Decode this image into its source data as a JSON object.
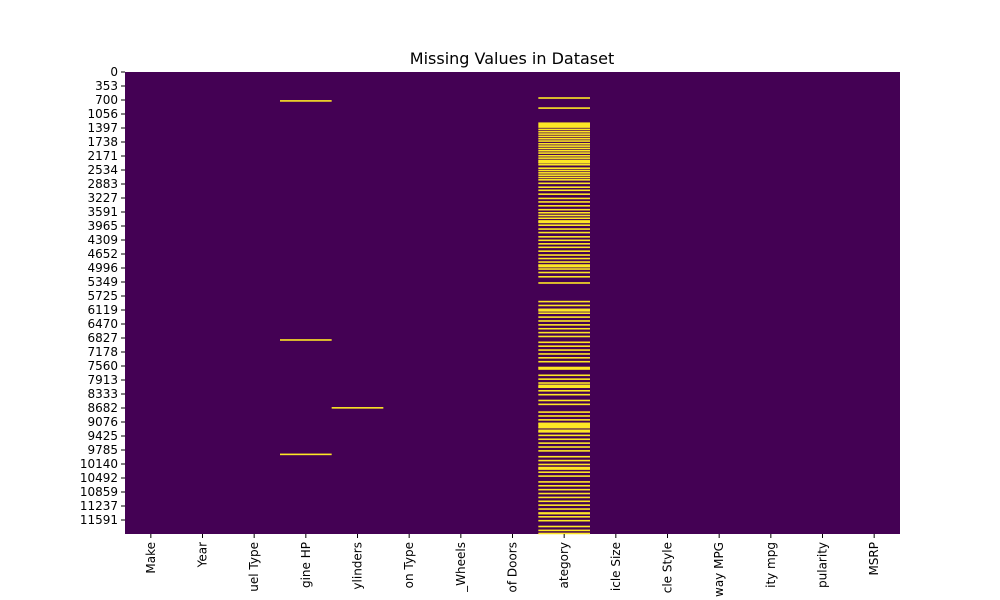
{
  "chart_data": {
    "type": "heatmap",
    "title": "Missing Values in Dataset",
    "xlabel": "",
    "ylabel": "",
    "columns": [
      "Make",
      "Year",
      "Fuel Type",
      "Engine HP",
      "Cylinders",
      "Transmission Type",
      "Driven_Wheels",
      "Number of Doors",
      "Market Category",
      "Vehicle Size",
      "Vehicle Style",
      "highway MPG",
      "city mpg",
      "Popularity",
      "MSRP"
    ],
    "column_tick_labels": [
      "Make",
      "Year",
      "uel Type",
      "gine HP",
      "ylinders",
      "on Type",
      "_Wheels",
      "of Doors",
      "ategory",
      "icle Size",
      "cle Style",
      "way MPG",
      "ity mpg",
      "pularity",
      "MSRP"
    ],
    "row_tick_labels": [
      "0",
      "353",
      "700",
      "1056",
      "1397",
      "1738",
      "2171",
      "2534",
      "2883",
      "3227",
      "3591",
      "3965",
      "4309",
      "4652",
      "4996",
      "5349",
      "5725",
      "6119",
      "6470",
      "6827",
      "7178",
      "7560",
      "7913",
      "8333",
      "8682",
      "9076",
      "9425",
      "9785",
      "10140",
      "10492",
      "10859",
      "11237",
      "11591"
    ],
    "total_rows": 11914,
    "colors": {
      "present": "#440154",
      "missing": "#fde725"
    },
    "missing_rows": {
      "Engine HP": [
        725,
        6890,
        9840
      ],
      "Cylinders": [
        8640
      ],
      "Number of Doors": [],
      "Market Category": [
        650,
        910,
        1460,
        1520,
        1580,
        1640,
        1700,
        1760,
        1830,
        1890,
        1950,
        2010,
        2070,
        2140,
        2200,
        2260,
        2320,
        2370,
        2460,
        2520,
        2580,
        2640,
        2700,
        2760,
        2850,
        2950,
        3030,
        3130,
        3240,
        3330,
        3430,
        3530,
        3610,
        3680,
        3750,
        3840,
        3930,
        4030,
        4120,
        4230,
        4320,
        4410,
        4500,
        4600,
        4700,
        4790,
        4880,
        4960,
        5060,
        5150,
        5260,
        5420,
        5900,
        6000,
        6100,
        6200,
        6300,
        6400,
        6500,
        6600,
        6700,
        6800,
        6950,
        7050,
        7150,
        7250,
        7350,
        7450,
        7600,
        7800,
        7900,
        8000,
        8100,
        8200,
        8300,
        8450,
        8550,
        8750,
        8850,
        8950,
        9050,
        9150,
        9250,
        9350,
        9450,
        9550,
        9650,
        9750,
        9900,
        10000,
        10100,
        10200,
        10300,
        10400,
        10550,
        10650,
        10750,
        10850,
        10950,
        11050,
        11150,
        11250,
        11350,
        11450,
        11550,
        11700,
        11800,
        11880
      ]
    },
    "missing_bands": {
      "Market Category": [
        [
          1300,
          1440
        ],
        [
          2280,
          2350
        ],
        [
          3820,
          3900
        ],
        [
          4960,
          5040
        ],
        [
          6120,
          6180
        ],
        [
          7610,
          7680
        ],
        [
          8060,
          8150
        ],
        [
          9040,
          9180
        ],
        [
          9220,
          9300
        ],
        [
          10180,
          10260
        ],
        [
          11370,
          11410
        ]
      ]
    },
    "grid": false,
    "colorbar": false
  }
}
